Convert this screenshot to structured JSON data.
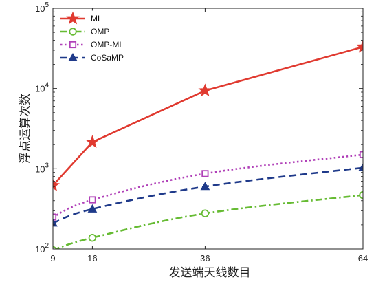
{
  "chart_data": {
    "type": "line",
    "xlabel": "发送端天线数目",
    "ylabel": "浮点运算次数",
    "x": [
      9,
      16,
      36,
      64
    ],
    "xticks": [
      "9",
      "16",
      "36",
      "64"
    ],
    "xlim": [
      9,
      64
    ],
    "yscale": "log",
    "ylim": [
      100,
      100000
    ],
    "yticks": [
      {
        "value": 100,
        "base": "10",
        "exp": "2"
      },
      {
        "value": 1000,
        "base": "10",
        "exp": "3"
      },
      {
        "value": 10000,
        "base": "10",
        "exp": "4"
      },
      {
        "value": 100000,
        "base": "10",
        "exp": "5"
      }
    ],
    "grid": false,
    "legend_position": "top-left",
    "series": [
      {
        "name": "ML",
        "values": [
          620,
          2150,
          9400,
          33000
        ],
        "color": "#e03a30",
        "marker": "star",
        "dash": "solid",
        "width": 2.6
      },
      {
        "name": "OMP",
        "values": [
          97,
          138,
          278,
          470
        ],
        "color": "#66bb33",
        "marker": "circle",
        "dash": "dashdot",
        "width": 2.6
      },
      {
        "name": "OMP-ML",
        "values": [
          250,
          410,
          870,
          1500
        ],
        "color": "#b040b8",
        "marker": "square",
        "dash": "dotted",
        "width": 2.6
      },
      {
        "name": "CoSaMP",
        "values": [
          210,
          315,
          600,
          1030
        ],
        "color": "#1f3a8a",
        "marker": "triangle",
        "dash": "dashed",
        "width": 2.6
      }
    ]
  }
}
